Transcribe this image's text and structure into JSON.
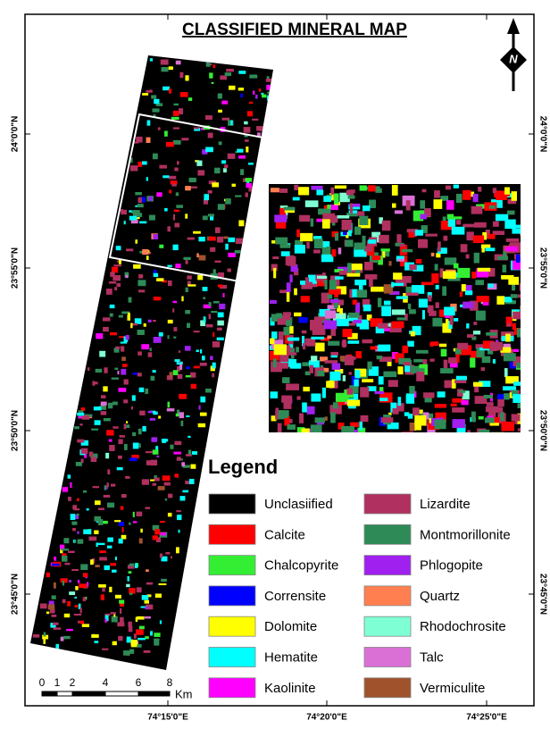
{
  "title": "CLASSIFIED MINERAL MAP",
  "north_label": "N",
  "legend": {
    "title": "Legend",
    "items": [
      {
        "label": "Unclasiified",
        "color": "#000000"
      },
      {
        "label": "Calcite",
        "color": "#ff0000"
      },
      {
        "label": "Chalcopyrite",
        "color": "#33ee33"
      },
      {
        "label": "Corrensite",
        "color": "#0000ff"
      },
      {
        "label": "Dolomite",
        "color": "#ffff00"
      },
      {
        "label": "Hematite",
        "color": "#00ffff"
      },
      {
        "label": "Kaolinite",
        "color": "#ff00ff"
      },
      {
        "label": "Lizardite",
        "color": "#b03060"
      },
      {
        "label": "Montmorillonite",
        "color": "#2e8b57"
      },
      {
        "label": "Phlogopite",
        "color": "#a020f0"
      },
      {
        "label": "Quartz",
        "color": "#ff7f50"
      },
      {
        "label": "Rhodochrosite",
        "color": "#7fffd4"
      },
      {
        "label": "Talc",
        "color": "#da70d6"
      },
      {
        "label": "Vermiculite",
        "color": "#a0522d"
      }
    ]
  },
  "latitude_labels": [
    "24°0'0\"N",
    "23°55'0\"N",
    "23°50'0\"N",
    "23°45'0\"N"
  ],
  "longitude_labels": [
    "74°15'0\"E",
    "74°20'0\"E",
    "74°25'0\"E"
  ],
  "scale_bar": {
    "labels": [
      "0",
      "1",
      "2",
      "4",
      "6",
      "8"
    ],
    "unit": "Km"
  }
}
